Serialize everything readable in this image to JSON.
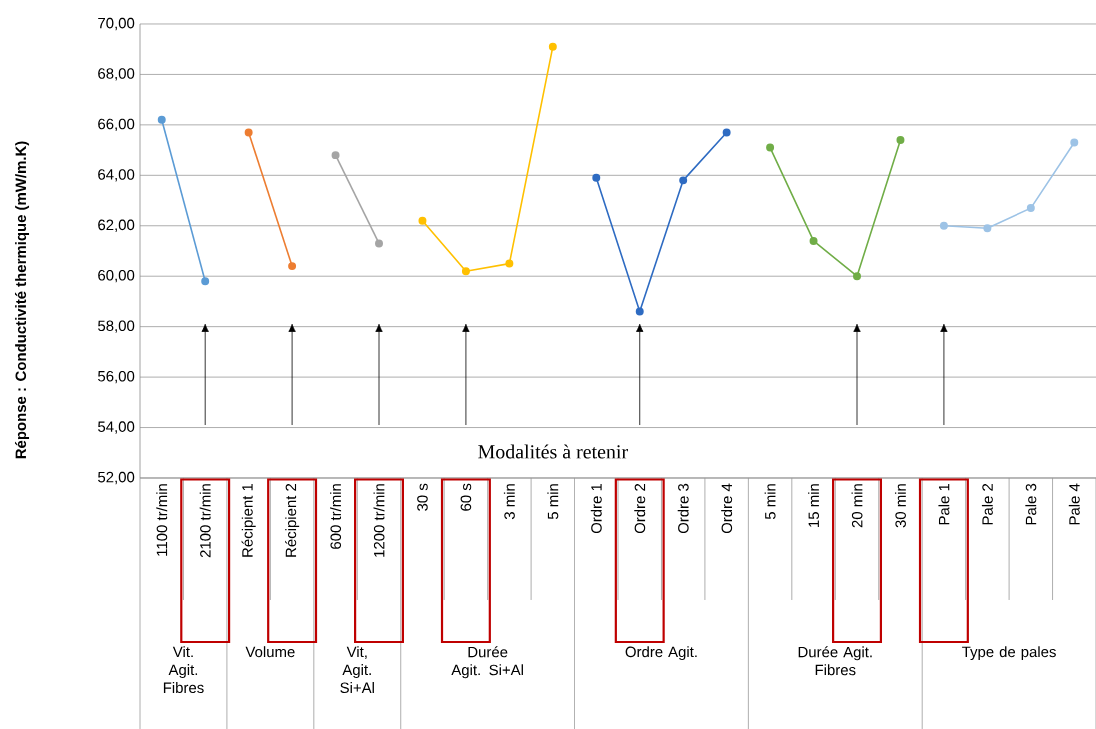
{
  "chart_data": {
    "type": "line",
    "ylabel": "Réponse : Conductivité thermique (mW/m.K)",
    "categories": [
      "1100 tr/min",
      "2100 tr/min",
      "Récipient 1",
      "Récipient 2",
      "600 tr/min",
      "1200 tr/min",
      "30 s",
      "60 s",
      "3 min",
      "5 min",
      "Ordre 1",
      "Ordre 2",
      "Ordre 3",
      "Ordre 4",
      "5 min",
      "15 min",
      "20 min",
      "30 min",
      "Pale 1",
      "Pale 2",
      "Pale 3",
      "Pale 4"
    ],
    "series": [
      {
        "color": "#5b9bd5",
        "values": [
          66.2,
          59.8,
          null,
          null,
          null,
          null,
          null,
          null,
          null,
          null,
          null,
          null,
          null,
          null,
          null,
          null,
          null,
          null,
          null,
          null,
          null,
          null
        ]
      },
      {
        "color": "#ed7d31",
        "values": [
          null,
          null,
          65.7,
          60.4,
          null,
          null,
          null,
          null,
          null,
          null,
          null,
          null,
          null,
          null,
          null,
          null,
          null,
          null,
          null,
          null,
          null,
          null
        ]
      },
      {
        "color": "#a5a5a5",
        "values": [
          null,
          null,
          null,
          null,
          64.8,
          61.3,
          null,
          null,
          null,
          null,
          null,
          null,
          null,
          null,
          null,
          null,
          null,
          null,
          null,
          null,
          null,
          null
        ]
      },
      {
        "color": "#ffc000",
        "values": [
          null,
          null,
          null,
          null,
          null,
          null,
          62.2,
          60.2,
          60.5,
          69.1,
          null,
          null,
          null,
          null,
          null,
          null,
          null,
          null,
          null,
          null,
          null,
          null
        ]
      },
      {
        "color": "#2e6bc2",
        "values": [
          null,
          null,
          null,
          null,
          null,
          null,
          null,
          null,
          null,
          null,
          63.9,
          58.6,
          63.8,
          65.7,
          null,
          null,
          null,
          null,
          null,
          null,
          null,
          null
        ]
      },
      {
        "color": "#70ad47",
        "values": [
          null,
          null,
          null,
          null,
          null,
          null,
          null,
          null,
          null,
          null,
          null,
          null,
          null,
          null,
          65.1,
          61.4,
          60.0,
          65.4,
          null,
          null,
          null,
          null
        ]
      },
      {
        "color": "#9dc3e6",
        "values": [
          null,
          null,
          null,
          null,
          null,
          null,
          null,
          null,
          null,
          null,
          null,
          null,
          null,
          null,
          null,
          null,
          null,
          null,
          62.0,
          61.9,
          62.7,
          65.3
        ]
      }
    ],
    "ylim": [
      52,
      70
    ],
    "yticks": [
      {
        "value": 52,
        "label": "52,00"
      },
      {
        "value": 54,
        "label": "54,00"
      },
      {
        "value": 56,
        "label": "56,00"
      },
      {
        "value": 58,
        "label": "58,00"
      },
      {
        "value": 60,
        "label": "60,00"
      },
      {
        "value": 62,
        "label": "62,00"
      },
      {
        "value": 64,
        "label": "64,00"
      },
      {
        "value": 66,
        "label": "66,00"
      },
      {
        "value": 68,
        "label": "68,00"
      },
      {
        "value": 70,
        "label": "70,00"
      }
    ],
    "grid": "y",
    "marker": "circle",
    "line_style": "solid",
    "annotations": [
      "Modalités à retenir",
      "Vit. Agit. Fibres",
      "Volume",
      "Vit, Agit. Si+Al",
      "Durée Agit. Si+Al",
      "Ordre Agit.",
      "Durée Agit. Fibres",
      "Type de pales"
    ]
  }
}
